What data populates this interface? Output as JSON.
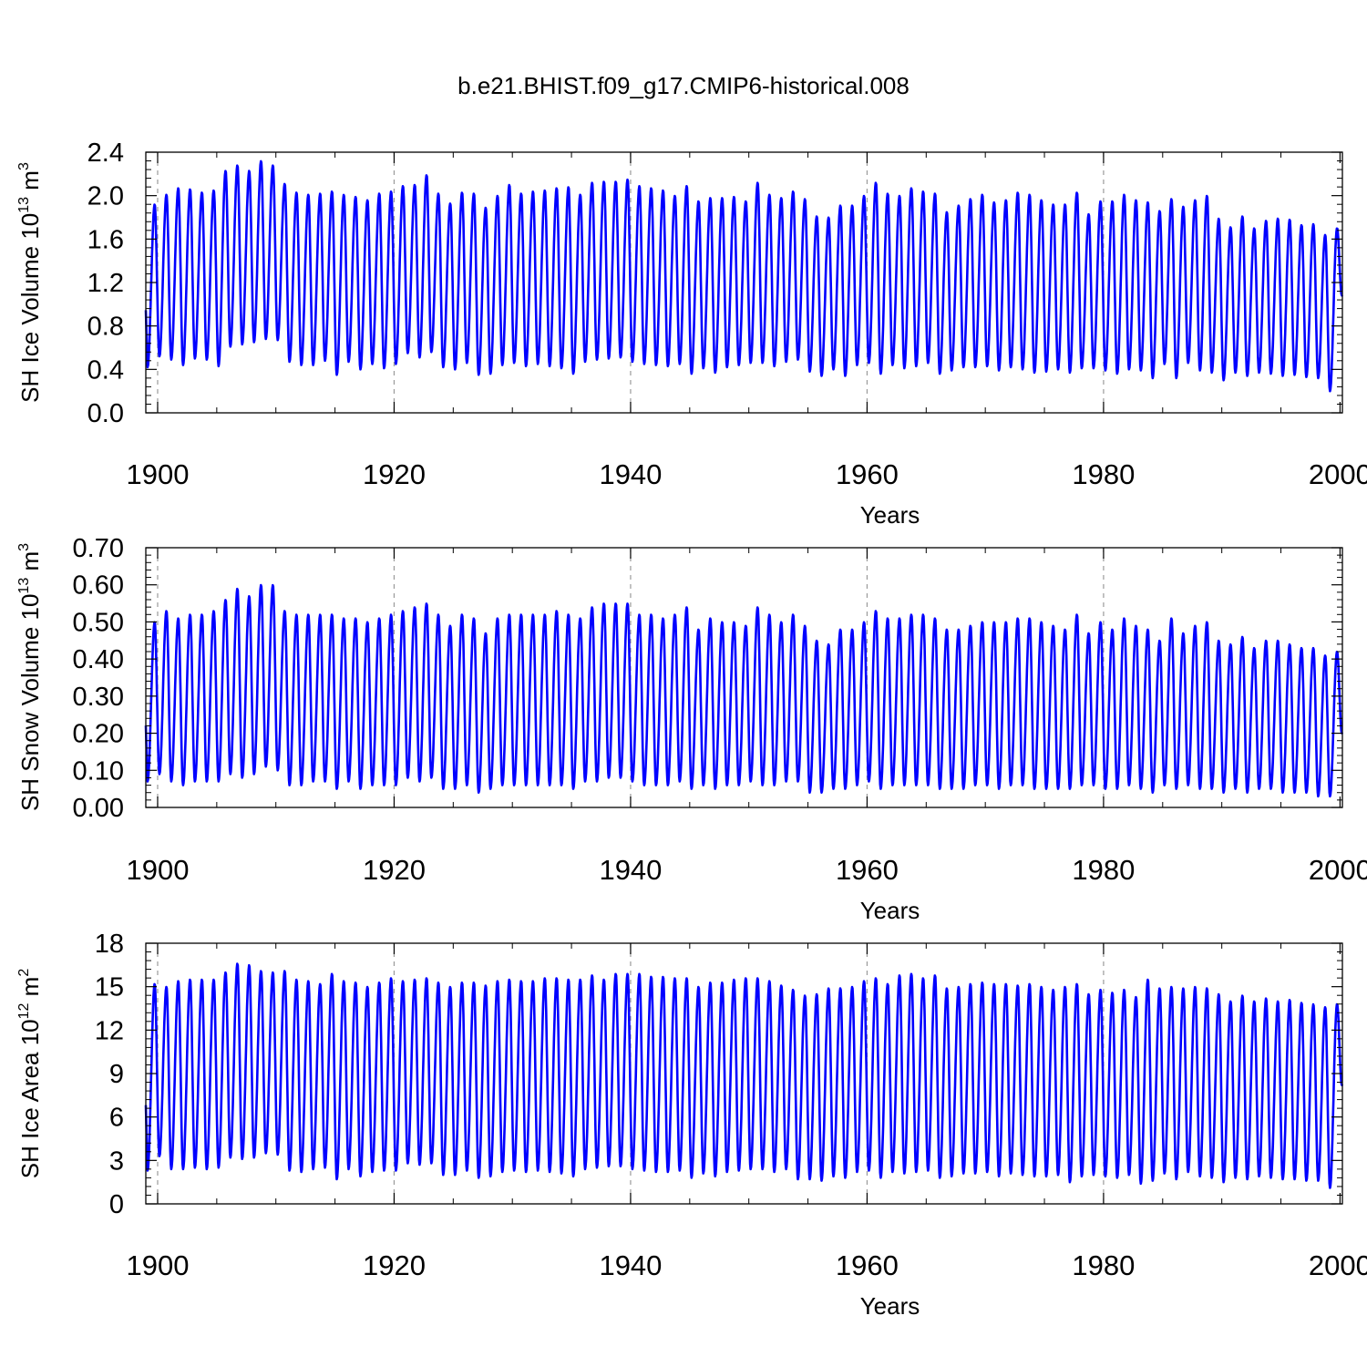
{
  "title": "b.e21.BHIST.f09_g17.CMIP6-historical.008",
  "colors": {
    "series": "#0000ff",
    "grid": "#9a9a9a",
    "axis": "#000000"
  },
  "chart_data": [
    {
      "type": "line",
      "ylabel": "SH Ice Volume 10",
      "ylabel_exp": "13",
      "ylabel_unit": " m",
      "ylabel_unit_exp": "3",
      "xlabel": "Years",
      "xlim": [
        1899,
        2000.2
      ],
      "ylim": [
        0,
        2.4
      ],
      "yticks": [
        "0.0",
        "0.4",
        "0.8",
        "1.2",
        "1.6",
        "2.0",
        "2.4"
      ],
      "yticks_values": [
        0,
        0.4,
        0.8,
        1.2,
        1.6,
        2.0,
        2.4
      ],
      "xticks": [
        "1900",
        "1920",
        "1940",
        "1960",
        "1980",
        "2000"
      ],
      "xticks_values": [
        1900,
        1920,
        1940,
        1960,
        1980,
        2000
      ],
      "grid_years": [
        1900,
        1920,
        1940,
        1960,
        1980
      ],
      "series_name": "SH Ice Volume",
      "annual_max": [
        1.92,
        2.01,
        2.07,
        2.06,
        2.03,
        2.05,
        2.23,
        2.28,
        2.23,
        2.32,
        2.28,
        2.11,
        2.03,
        2.01,
        2.02,
        2.04,
        2.01,
        1.99,
        1.96,
        2.02,
        2.04,
        2.09,
        2.1,
        2.19,
        2.02,
        1.93,
        2.03,
        2.02,
        1.89,
        2.0,
        2.1,
        2.02,
        2.04,
        2.05,
        2.07,
        2.08,
        2.01,
        2.12,
        2.13,
        2.13,
        2.15,
        2.09,
        2.07,
        2.05,
        2.0,
        2.09,
        1.95,
        1.98,
        1.98,
        1.99,
        1.95,
        2.12,
        2.01,
        1.98,
        2.04,
        1.97,
        1.81,
        1.8,
        1.91,
        1.91,
        2.0,
        2.12,
        2.02,
        2.0,
        2.07,
        2.04,
        2.02,
        1.85,
        1.91,
        1.97,
        2.01,
        1.94,
        1.96,
        2.03,
        2.01,
        1.96,
        1.92,
        1.92,
        2.03,
        1.83,
        1.95,
        1.95,
        2.01,
        1.96,
        1.94,
        1.86,
        1.97,
        1.9,
        1.96,
        2.0,
        1.79,
        1.71,
        1.81,
        1.7,
        1.77,
        1.79,
        1.78,
        1.73,
        1.74,
        1.64,
        1.7,
        1.63
      ],
      "annual_min": [
        0.42,
        0.52,
        0.49,
        0.44,
        0.5,
        0.49,
        0.43,
        0.61,
        0.63,
        0.65,
        0.68,
        0.67,
        0.47,
        0.44,
        0.44,
        0.48,
        0.35,
        0.47,
        0.4,
        0.45,
        0.41,
        0.45,
        0.55,
        0.51,
        0.56,
        0.42,
        0.4,
        0.46,
        0.35,
        0.36,
        0.44,
        0.46,
        0.43,
        0.45,
        0.43,
        0.41,
        0.36,
        0.47,
        0.49,
        0.5,
        0.51,
        0.47,
        0.45,
        0.44,
        0.43,
        0.45,
        0.36,
        0.41,
        0.37,
        0.42,
        0.44,
        0.46,
        0.46,
        0.43,
        0.47,
        0.49,
        0.38,
        0.34,
        0.4,
        0.34,
        0.44,
        0.46,
        0.36,
        0.44,
        0.41,
        0.43,
        0.46,
        0.36,
        0.39,
        0.42,
        0.42,
        0.43,
        0.39,
        0.42,
        0.4,
        0.37,
        0.38,
        0.4,
        0.37,
        0.41,
        0.41,
        0.39,
        0.36,
        0.4,
        0.39,
        0.32,
        0.45,
        0.32,
        0.46,
        0.39,
        0.37,
        0.3,
        0.37,
        0.34,
        0.37,
        0.36,
        0.34,
        0.35,
        0.33,
        0.32,
        0.2,
        1.08
      ]
    },
    {
      "type": "line",
      "ylabel": "SH Snow Volume 10",
      "ylabel_exp": "13",
      "ylabel_unit": " m",
      "ylabel_unit_exp": "3",
      "xlabel": "Years",
      "xlim": [
        1899,
        2000.2
      ],
      "ylim": [
        0,
        0.7
      ],
      "yticks": [
        "0.00",
        "0.10",
        "0.20",
        "0.30",
        "0.40",
        "0.50",
        "0.60",
        "0.70"
      ],
      "yticks_values": [
        0,
        0.1,
        0.2,
        0.3,
        0.4,
        0.5,
        0.6,
        0.7
      ],
      "xticks": [
        "1900",
        "1920",
        "1940",
        "1960",
        "1980",
        "2000"
      ],
      "xticks_values": [
        1900,
        1920,
        1940,
        1960,
        1980,
        2000
      ],
      "grid_years": [
        1900,
        1920,
        1940,
        1960,
        1980
      ],
      "series_name": "SH Snow Volume",
      "annual_max": [
        0.5,
        0.53,
        0.51,
        0.52,
        0.52,
        0.53,
        0.56,
        0.59,
        0.57,
        0.6,
        0.6,
        0.53,
        0.52,
        0.52,
        0.52,
        0.52,
        0.51,
        0.51,
        0.5,
        0.51,
        0.52,
        0.53,
        0.54,
        0.55,
        0.52,
        0.49,
        0.52,
        0.51,
        0.47,
        0.51,
        0.52,
        0.52,
        0.52,
        0.52,
        0.53,
        0.52,
        0.51,
        0.54,
        0.55,
        0.55,
        0.55,
        0.52,
        0.52,
        0.51,
        0.52,
        0.54,
        0.48,
        0.51,
        0.5,
        0.5,
        0.49,
        0.54,
        0.52,
        0.5,
        0.52,
        0.49,
        0.45,
        0.44,
        0.48,
        0.48,
        0.5,
        0.53,
        0.51,
        0.51,
        0.52,
        0.52,
        0.51,
        0.48,
        0.48,
        0.49,
        0.5,
        0.5,
        0.5,
        0.51,
        0.51,
        0.5,
        0.49,
        0.48,
        0.52,
        0.47,
        0.5,
        0.48,
        0.51,
        0.49,
        0.48,
        0.45,
        0.51,
        0.47,
        0.49,
        0.5,
        0.45,
        0.44,
        0.46,
        0.43,
        0.45,
        0.45,
        0.44,
        0.43,
        0.43,
        0.41,
        0.42,
        0.42
      ],
      "annual_min": [
        0.07,
        0.09,
        0.07,
        0.06,
        0.07,
        0.07,
        0.07,
        0.09,
        0.08,
        0.09,
        0.11,
        0.1,
        0.06,
        0.06,
        0.07,
        0.07,
        0.05,
        0.07,
        0.05,
        0.06,
        0.06,
        0.06,
        0.08,
        0.07,
        0.08,
        0.05,
        0.05,
        0.06,
        0.04,
        0.05,
        0.06,
        0.06,
        0.06,
        0.06,
        0.06,
        0.06,
        0.05,
        0.07,
        0.07,
        0.08,
        0.08,
        0.07,
        0.06,
        0.06,
        0.06,
        0.07,
        0.05,
        0.06,
        0.05,
        0.06,
        0.06,
        0.07,
        0.06,
        0.06,
        0.07,
        0.07,
        0.04,
        0.04,
        0.05,
        0.05,
        0.06,
        0.07,
        0.05,
        0.06,
        0.06,
        0.06,
        0.06,
        0.05,
        0.05,
        0.05,
        0.06,
        0.06,
        0.05,
        0.06,
        0.06,
        0.05,
        0.05,
        0.05,
        0.05,
        0.06,
        0.06,
        0.05,
        0.05,
        0.06,
        0.05,
        0.04,
        0.06,
        0.05,
        0.06,
        0.05,
        0.05,
        0.04,
        0.05,
        0.04,
        0.05,
        0.05,
        0.04,
        0.04,
        0.04,
        0.03,
        0.03,
        0.2
      ]
    },
    {
      "type": "line",
      "ylabel": "SH Ice Area 10",
      "ylabel_exp": "12",
      "ylabel_unit": " m",
      "ylabel_unit_exp": "2",
      "xlabel": "Years",
      "xlim": [
        1899,
        2000.2
      ],
      "ylim": [
        0,
        18
      ],
      "yticks": [
        "0",
        "3",
        "6",
        "9",
        "12",
        "15",
        "18"
      ],
      "yticks_values": [
        0,
        3,
        6,
        9,
        12,
        15,
        18
      ],
      "xticks": [
        "1900",
        "1920",
        "1940",
        "1960",
        "1980",
        "2000"
      ],
      "xticks_values": [
        1900,
        1920,
        1940,
        1960,
        1980,
        2000
      ],
      "grid_years": [
        1900,
        1920,
        1940,
        1960,
        1980
      ],
      "series_name": "SH Ice Area",
      "annual_max": [
        15.2,
        15.0,
        15.4,
        15.5,
        15.5,
        15.5,
        16.0,
        16.6,
        16.5,
        16.1,
        16.0,
        16.1,
        15.5,
        15.4,
        15.2,
        15.9,
        15.4,
        15.3,
        15.0,
        15.3,
        15.6,
        15.4,
        15.5,
        15.6,
        15.3,
        15.0,
        15.3,
        15.3,
        15.1,
        15.4,
        15.5,
        15.4,
        15.4,
        15.6,
        15.6,
        15.5,
        15.5,
        15.8,
        15.5,
        15.9,
        15.9,
        15.9,
        15.7,
        15.7,
        15.6,
        15.6,
        15.0,
        15.3,
        15.3,
        15.5,
        15.6,
        15.6,
        15.4,
        15.1,
        14.8,
        14.4,
        14.5,
        14.9,
        14.9,
        15.0,
        15.4,
        15.6,
        15.2,
        15.8,
        15.9,
        15.6,
        15.8,
        14.9,
        15.0,
        15.2,
        15.3,
        15.2,
        15.2,
        15.1,
        15.2,
        15.0,
        14.8,
        15.0,
        15.2,
        14.5,
        14.8,
        14.6,
        14.8,
        14.3,
        15.5,
        14.9,
        15.0,
        14.9,
        15.0,
        14.9,
        14.5,
        14.0,
        14.4,
        14.0,
        14.2,
        14.0,
        14.1,
        13.9,
        13.8,
        13.6,
        13.8,
        13.9
      ],
      "annual_min": [
        2.3,
        3.3,
        2.4,
        2.4,
        2.5,
        2.4,
        2.5,
        3.2,
        3.1,
        3.2,
        3.5,
        3.4,
        2.3,
        2.2,
        2.4,
        2.5,
        1.7,
        2.4,
        1.9,
        2.2,
        2.3,
        2.3,
        2.8,
        2.7,
        2.8,
        2.0,
        2.0,
        2.3,
        1.8,
        1.9,
        2.2,
        2.3,
        2.2,
        2.3,
        2.2,
        2.1,
        1.9,
        2.4,
        2.5,
        2.6,
        2.6,
        2.4,
        2.3,
        2.2,
        2.2,
        2.3,
        1.8,
        2.1,
        1.9,
        2.2,
        2.3,
        2.4,
        2.4,
        2.2,
        2.4,
        1.7,
        1.7,
        1.6,
        1.9,
        1.8,
        2.2,
        2.3,
        1.8,
        2.2,
        2.1,
        2.2,
        2.3,
        1.8,
        1.9,
        2.1,
        2.1,
        2.2,
        1.9,
        2.1,
        2.0,
        1.9,
        1.9,
        2.0,
        1.5,
        1.9,
        2.0,
        1.9,
        1.8,
        2.0,
        1.4,
        1.6,
        2.1,
        1.7,
        2.2,
        1.9,
        1.8,
        1.5,
        1.8,
        1.7,
        1.9,
        1.8,
        1.7,
        1.7,
        1.6,
        1.6,
        1.1,
        8.2
      ]
    }
  ]
}
